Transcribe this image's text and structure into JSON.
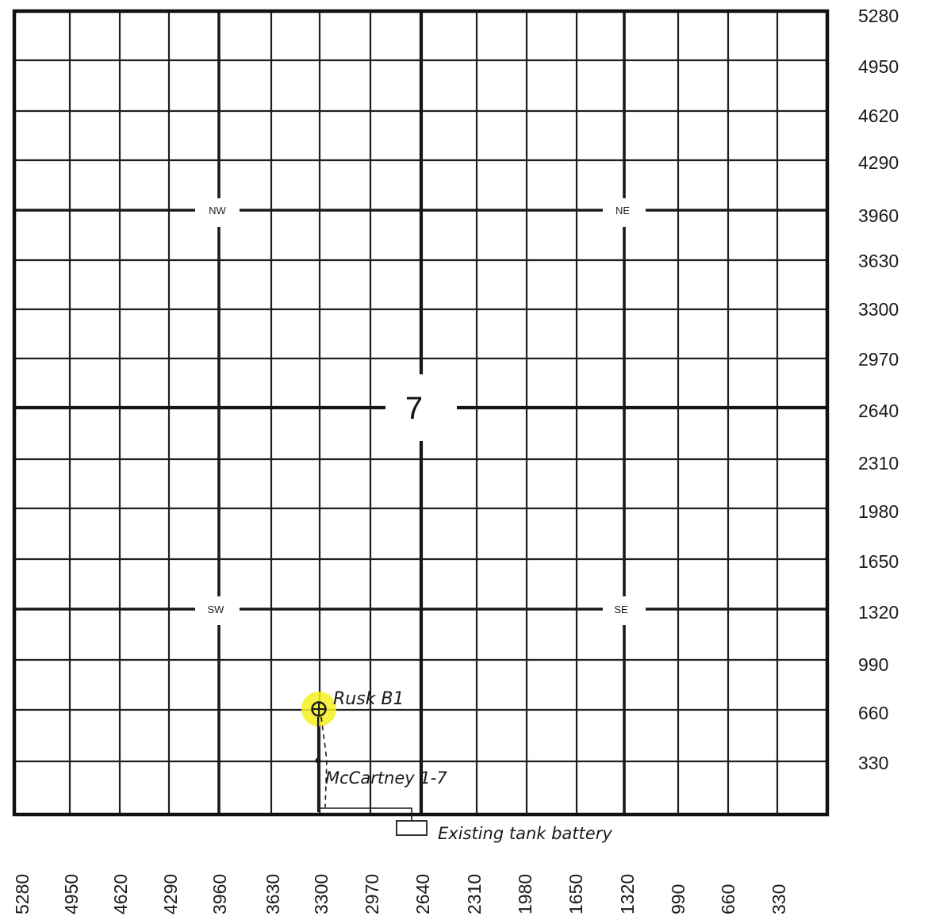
{
  "section_number": "7",
  "quarter_labels": {
    "nw": "NW",
    "ne": "NE",
    "sw": "SW",
    "se": "SE"
  },
  "right_scale_labels": [
    "5280",
    "4950",
    "4620",
    "4290",
    "3960",
    "3630",
    "3300",
    "2970",
    "2640",
    "2310",
    "1980",
    "1650",
    "1320",
    "990",
    "660",
    "330"
  ],
  "bottom_scale_labels": [
    "5280",
    "4950",
    "4620",
    "4290",
    "3960",
    "3630",
    "3300",
    "2970",
    "2640",
    "2310",
    "1980",
    "1650",
    "1320",
    "990",
    "660",
    "330"
  ],
  "annotations": {
    "well_label": "Rusk B1",
    "existing_well_label": "McCartney 1-7",
    "tank_battery_label": "Existing tank battery"
  },
  "colors": {
    "grid": "#1f1f1f",
    "highlight": "#f4f020",
    "ink": "#1a1a1a"
  }
}
